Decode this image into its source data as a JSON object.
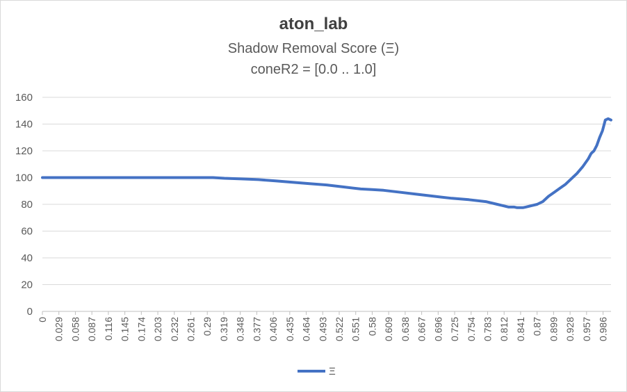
{
  "chart_data": {
    "type": "line",
    "title": "aton_lab",
    "subtitle": "Shadow Removal Score (Ξ)",
    "subtitle2": "coneR2 = [0.0 .. 1.0]",
    "xlabel": "",
    "ylabel": "",
    "ylim": [
      0,
      160
    ],
    "yticks": [
      "0",
      "20",
      "40",
      "60",
      "80",
      "100",
      "120",
      "140",
      "160"
    ],
    "xlim": [
      0,
      1.0
    ],
    "xticks": [
      "0",
      "0.029",
      "0.058",
      "0.087",
      "0.116",
      "0.145",
      "0.174",
      "0.203",
      "0.232",
      "0.261",
      "0.29",
      "0.319",
      "0.348",
      "0.377",
      "0.406",
      "0.435",
      "0.464",
      "0.493",
      "0.522",
      "0.551",
      "0.58",
      "0.609",
      "0.638",
      "0.667",
      "0.696",
      "0.725",
      "0.754",
      "0.783",
      "0.812",
      "0.841",
      "0.87",
      "0.899",
      "0.928",
      "0.957",
      "0.986"
    ],
    "grid": true,
    "legend_position": "bottom",
    "series": [
      {
        "name": "Ξ",
        "color": "#4472c4",
        "x": [
          0,
          0.05,
          0.1,
          0.15,
          0.2,
          0.25,
          0.29,
          0.3,
          0.32,
          0.35,
          0.38,
          0.41,
          0.44,
          0.47,
          0.5,
          0.53,
          0.56,
          0.58,
          0.6,
          0.63,
          0.66,
          0.69,
          0.72,
          0.75,
          0.78,
          0.8,
          0.81,
          0.82,
          0.83,
          0.835,
          0.84,
          0.845,
          0.85,
          0.86,
          0.87,
          0.88,
          0.89,
          0.9,
          0.91,
          0.92,
          0.93,
          0.94,
          0.95,
          0.96,
          0.965,
          0.97,
          0.975,
          0.98,
          0.985,
          0.99,
          0.995,
          1.0
        ],
        "y": [
          100,
          100,
          100,
          100,
          100,
          100,
          100,
          100,
          99.5,
          99,
          98.5,
          97.5,
          96.5,
          95.5,
          94.5,
          93,
          91.5,
          91,
          90.5,
          89,
          87.5,
          86,
          84.5,
          83.5,
          82,
          80,
          79,
          78,
          78,
          77.5,
          77.5,
          77.5,
          78,
          79,
          80,
          82,
          86,
          89,
          92,
          95,
          99,
          103,
          108,
          114,
          118,
          120,
          124,
          130,
          135,
          143,
          144,
          143
        ]
      }
    ]
  }
}
